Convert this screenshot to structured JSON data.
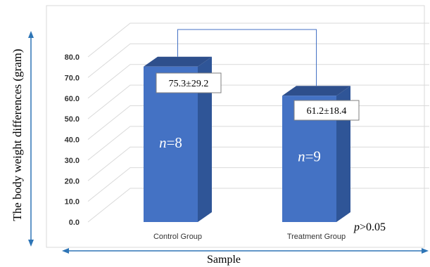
{
  "chart_data": {
    "type": "bar",
    "style": "3d-column",
    "categories": [
      "Control Group",
      "Treatment Group"
    ],
    "values": [
      75.3,
      61.2
    ],
    "value_labels": [
      "75.3±29.2",
      "61.2±18.4"
    ],
    "n_prefix": "n",
    "n_values": [
      "=8",
      "=9"
    ],
    "p_prefix": "p",
    "p_text": ">0.05",
    "ylabel": "The body weight differences (gram)",
    "xlabel": "Sample",
    "ylim": [
      0,
      80
    ],
    "yticks": [
      "0.0",
      "10.0",
      "20.0",
      "30.0",
      "40.0",
      "50.0",
      "60.0",
      "70.0",
      "80.0"
    ],
    "grid": true,
    "colors": {
      "bar_front": "#4472c4",
      "bar_side": "#2f5597",
      "bar_top": "#2e4f8c",
      "bracket": "#4472c4",
      "axis_arrow": "#2e75b6",
      "grid": "#d9d9d9"
    }
  }
}
